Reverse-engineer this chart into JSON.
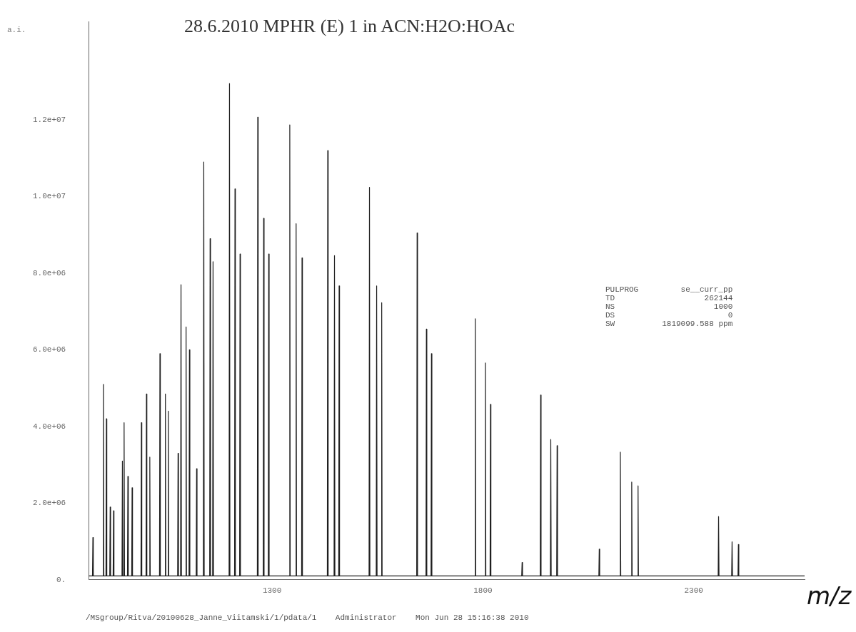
{
  "chart_data": {
    "type": "line",
    "title": "28.6.2010 MPHR (E) 1 in ACN:H2O:HOAc",
    "xlabel": "m/z",
    "ylabel": "a.i.",
    "annotations": [
      "PULPROG se__curr_pp",
      "TD 262144",
      "NS 1000",
      "DS 0",
      "SW 1819099.588 ppm",
      "/MSgroup/Ritva/20100628_Janne_Viitamski/1/pdata/1    Administrator    Mon Jun 28 15:16:38 2010"
    ],
    "x": [
      865,
      874,
      875,
      876,
      899,
      900,
      901,
      906,
      907,
      908,
      915,
      916,
      917,
      923,
      924,
      925,
      944,
      945,
      946,
      948,
      949,
      950,
      957,
      958,
      959,
      967,
      968,
      969,
      989,
      990,
      991,
      1001,
      1002,
      1003,
      1009,
      1010,
      1011,
      1033,
      1034,
      1035,
      1046,
      1047,
      1048,
      1053,
      1054,
      1055,
      1076,
      1077,
      1078,
      1083,
      1084,
      1085,
      1095,
      1096,
      1097,
      1103,
      1104,
      1105,
      1120,
      1121,
      1122,
      1137,
      1138,
      1139,
      1152,
      1153,
      1154,
      1159,
      1160,
      1161,
      1198,
      1199,
      1200,
      1211,
      1212,
      1213,
      1223,
      1224,
      1225,
      1265,
      1266,
      1267,
      1279,
      1280,
      1281,
      1291,
      1292,
      1293,
      1341,
      1342,
      1343,
      1356,
      1357,
      1358,
      1370,
      1371,
      1372,
      1431,
      1432,
      1433,
      1447,
      1448,
      1449,
      1458,
      1459,
      1460,
      1530,
      1531,
      1532,
      1547,
      1548,
      1549,
      1559,
      1560,
      1561,
      1643,
      1644,
      1645,
      1665,
      1666,
      1667,
      1677,
      1678,
      1679,
      1781,
      1782,
      1783,
      1805,
      1806,
      1807,
      1817,
      1818,
      1819,
      1892,
      1893,
      1894,
      1936,
      1937,
      1938,
      1960,
      1961,
      1962,
      1975,
      1976,
      1977,
      2075,
      2076,
      2077,
      2125,
      2126,
      2127,
      2152,
      2153,
      2154,
      2167,
      2168,
      2169,
      2358,
      2359,
      2360,
      2390,
      2391,
      2392,
      2405,
      2406,
      2407,
      2563
    ],
    "values": [
      100000,
      100000,
      1100000,
      100000,
      100000,
      5100000,
      100000,
      100000,
      4200000,
      100000,
      100000,
      1900000,
      100000,
      100000,
      1800000,
      100000,
      100000,
      3100000,
      100000,
      100000,
      4100000,
      100000,
      100000,
      2700000,
      100000,
      100000,
      2400000,
      100000,
      100000,
      4100000,
      100000,
      100000,
      4850000,
      100000,
      100000,
      3200000,
      100000,
      100000,
      5900000,
      100000,
      100000,
      4850000,
      100000,
      100000,
      4400000,
      100000,
      100000,
      3300000,
      100000,
      100000,
      7700000,
      100000,
      100000,
      6600000,
      100000,
      100000,
      6000000,
      100000,
      100000,
      2900000,
      100000,
      100000,
      10900000,
      100000,
      100000,
      8900000,
      100000,
      100000,
      8300000,
      100000,
      100000,
      12950000,
      100000,
      100000,
      10200000,
      100000,
      100000,
      8500000,
      100000,
      100000,
      12070000,
      100000,
      100000,
      9430000,
      100000,
      100000,
      8500000,
      100000,
      100000,
      11870000,
      100000,
      100000,
      9290000,
      100000,
      100000,
      8400000,
      100000,
      100000,
      11200000,
      100000,
      100000,
      8460000,
      100000,
      100000,
      7670000,
      100000,
      100000,
      10240000,
      100000,
      100000,
      7670000,
      100000,
      100000,
      7230000,
      100000,
      100000,
      9050000,
      100000,
      100000,
      6540000,
      100000,
      100000,
      5900000,
      100000,
      100000,
      6810000,
      100000,
      100000,
      5660000,
      100000,
      100000,
      4580000,
      100000,
      100000,
      450000,
      100000,
      100000,
      4820000,
      100000,
      100000,
      3660000,
      100000,
      100000,
      3500000,
      100000,
      100000,
      800000,
      100000,
      100000,
      3330000,
      100000,
      100000,
      2550000,
      100000,
      100000,
      2450000,
      100000,
      100000,
      1650000,
      100000,
      100000,
      990000,
      100000,
      100000,
      920000,
      100000,
      100000
    ],
    "color": "#1e1e1e",
    "xlim": [
      865,
      2563
    ],
    "xticks": [
      1300,
      1800,
      2300
    ],
    "ylim": [
      0,
      14560000
    ],
    "yticks": [
      {
        "value": 0,
        "label": "0."
      },
      {
        "value": 2000000,
        "label": "2.0e+06"
      },
      {
        "value": 4000000,
        "label": "4.0e+06"
      },
      {
        "value": 6000000,
        "label": "6.0e+06"
      },
      {
        "value": 8000000,
        "label": "8.0e+06"
      },
      {
        "value": 10000000,
        "label": "1.0e+07"
      },
      {
        "value": 12000000,
        "label": "1.2e+07"
      }
    ],
    "grid": false,
    "legend": false
  }
}
